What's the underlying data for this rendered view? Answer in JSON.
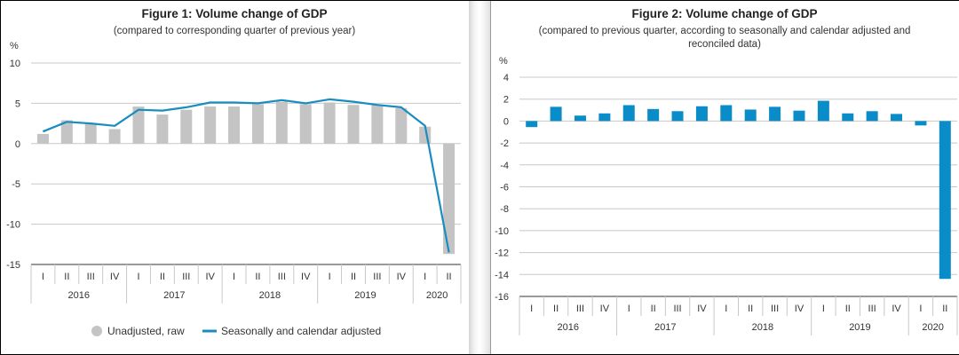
{
  "chart_data": [
    {
      "type": "bar",
      "title": "Figure 1: Volume change of GDP",
      "subtitle": "(compared to corresponding quarter of previous year)",
      "ylabel": "%",
      "xlabel": "",
      "ylim": [
        -15,
        10
      ],
      "yticks": [
        "10",
        "5",
        "0",
        "-5",
        "-10",
        "-15"
      ],
      "ytick_values": [
        10,
        5,
        0,
        -5,
        -10,
        -15
      ],
      "grid": true,
      "categories": [
        "I",
        "II",
        "III",
        "IV",
        "I",
        "II",
        "III",
        "IV",
        "I",
        "II",
        "III",
        "IV",
        "I",
        "II",
        "III",
        "IV",
        "I",
        "II"
      ],
      "years": [
        {
          "label": "2016",
          "quarters": 4
        },
        {
          "label": "2017",
          "quarters": 4
        },
        {
          "label": "2018",
          "quarters": 4
        },
        {
          "label": "2019",
          "quarters": 4
        },
        {
          "label": "2020",
          "quarters": 2
        }
      ],
      "series": [
        {
          "name": "Unadjusted, raw",
          "kind": "bar",
          "color": "#c4c4c4",
          "values": [
            1.2,
            2.9,
            2.5,
            1.8,
            4.6,
            3.6,
            4.2,
            4.6,
            4.6,
            4.9,
            5.2,
            4.9,
            5.1,
            4.8,
            4.8,
            4.4,
            2.1,
            -13.7
          ]
        },
        {
          "name": "Seasonally and calendar adjusted",
          "kind": "line",
          "color": "#1a8cc0",
          "values": [
            1.5,
            2.7,
            2.5,
            2.2,
            4.2,
            4.1,
            4.5,
            5.1,
            5.1,
            5.0,
            5.4,
            5.0,
            5.5,
            5.2,
            4.8,
            4.5,
            2.2,
            -13.5
          ]
        }
      ],
      "legend": "bottom"
    },
    {
      "type": "bar",
      "title": "Figure 2: Volume change of GDP",
      "subtitle_lines": [
        "(compared to previous quarter, according to seasonally and calendar adjusted and",
        "reconciled data)"
      ],
      "ylabel": "%",
      "xlabel": "",
      "ylim": [
        -16,
        4
      ],
      "yticks": [
        "4",
        "2",
        "0",
        "-2",
        "-4",
        "-6",
        "-8",
        "-10",
        "-12",
        "-14",
        "-16"
      ],
      "ytick_values": [
        4,
        2,
        0,
        -2,
        -4,
        -6,
        -8,
        -10,
        -12,
        -14,
        -16
      ],
      "grid": true,
      "categories": [
        "I",
        "II",
        "III",
        "IV",
        "I",
        "II",
        "III",
        "IV",
        "I",
        "II",
        "III",
        "IV",
        "I",
        "II",
        "III",
        "IV",
        "I",
        "II"
      ],
      "years": [
        {
          "label": "2016",
          "quarters": 4
        },
        {
          "label": "2017",
          "quarters": 4
        },
        {
          "label": "2018",
          "quarters": 4
        },
        {
          "label": "2019",
          "quarters": 4
        },
        {
          "label": "2020",
          "quarters": 2
        }
      ],
      "series": [
        {
          "name": "Volume change of GDP",
          "kind": "bar",
          "color": "#0a8cc8",
          "values": [
            -0.55,
            1.3,
            0.5,
            0.7,
            1.45,
            1.1,
            0.9,
            1.35,
            1.45,
            1.05,
            1.3,
            0.95,
            1.85,
            0.7,
            0.9,
            0.65,
            -0.4,
            -14.4
          ]
        }
      ]
    }
  ]
}
